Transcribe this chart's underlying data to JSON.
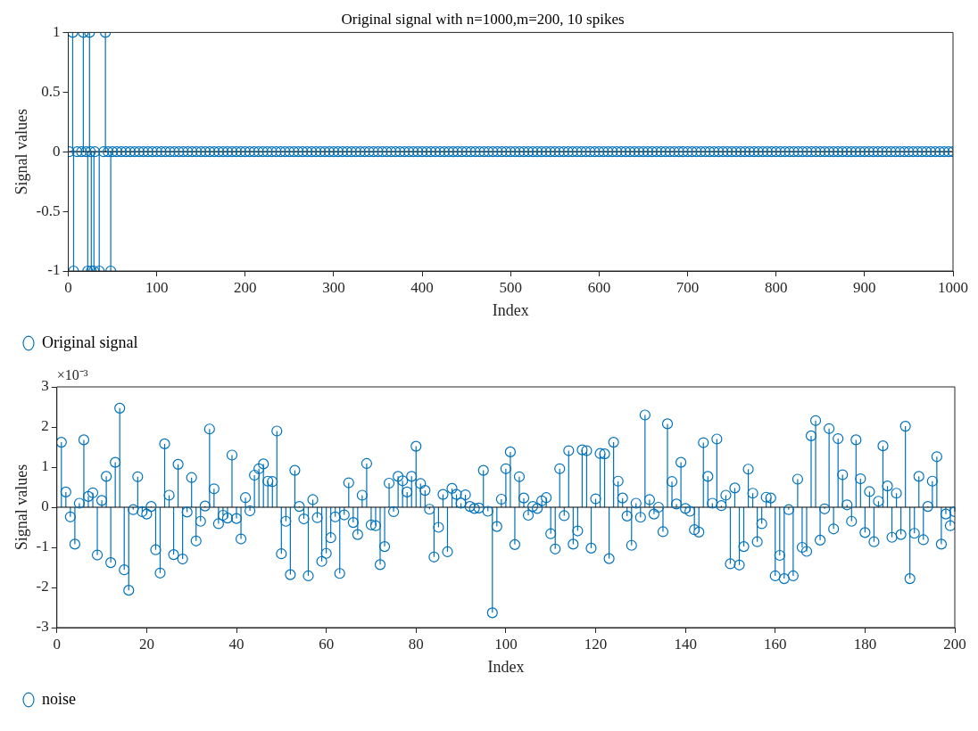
{
  "chart_data": [
    {
      "type": "lollipop",
      "title": "Original signal with n=1000,m=200, 10 spikes",
      "xlabel": "Index",
      "ylabel": "Signal values",
      "xlim": [
        0,
        1000
      ],
      "xticks": [
        0,
        100,
        200,
        300,
        400,
        500,
        600,
        700,
        800,
        900,
        1000
      ],
      "ylim": [
        -1,
        1
      ],
      "yticks": [
        -1,
        -0.5,
        0,
        0.5,
        1
      ],
      "legend": "bottom left",
      "marker": "circle",
      "series": [
        {
          "name": "Original signal",
          "color": "#0072bd",
          "x": [
            1,
            5,
            6,
            10,
            15,
            17,
            20,
            22,
            24,
            25,
            26,
            29,
            30,
            35,
            40,
            42,
            45,
            48,
            50,
            55,
            60,
            65,
            70,
            75,
            80,
            85,
            90,
            95,
            100,
            105,
            110,
            115,
            120,
            125,
            130,
            135,
            140,
            145,
            150,
            155,
            160,
            165,
            170,
            175,
            180,
            185,
            190,
            195,
            200,
            205,
            210,
            215,
            220,
            225,
            230,
            235,
            240,
            245,
            250,
            255,
            260,
            265,
            270,
            275,
            280,
            285,
            290,
            295,
            300,
            305,
            310,
            315,
            320,
            325,
            330,
            335,
            340,
            345,
            350,
            355,
            360,
            365,
            370,
            375,
            380,
            385,
            390,
            395,
            400,
            405,
            410,
            415,
            420,
            425,
            430,
            435,
            440,
            445,
            450,
            455,
            460,
            465,
            470,
            475,
            480,
            485,
            490,
            495,
            500,
            505,
            510,
            515,
            520,
            525,
            530,
            535,
            540,
            545,
            550,
            555,
            560,
            565,
            570,
            575,
            580,
            585,
            590,
            595,
            600,
            605,
            610,
            615,
            620,
            625,
            630,
            635,
            640,
            645,
            650,
            655,
            660,
            665,
            670,
            675,
            680,
            685,
            690,
            695,
            700,
            705,
            710,
            715,
            720,
            725,
            730,
            735,
            740,
            745,
            750,
            755,
            760,
            765,
            770,
            775,
            780,
            785,
            790,
            795,
            800,
            805,
            810,
            815,
            820,
            825,
            830,
            835,
            840,
            845,
            850,
            855,
            860,
            865,
            870,
            875,
            880,
            885,
            890,
            895,
            900,
            905,
            910,
            915,
            920,
            925,
            930,
            935,
            940,
            945,
            950,
            955,
            960,
            965,
            970,
            975,
            980,
            985,
            990,
            995,
            1000
          ],
          "values": [
            0,
            1,
            -1,
            0,
            0,
            1,
            0,
            -1,
            1,
            0,
            -1,
            -1,
            0,
            -1,
            0,
            1,
            0,
            -1,
            0,
            0,
            0,
            0,
            0,
            0,
            0,
            0,
            0,
            0,
            0,
            0,
            0,
            0,
            0,
            0,
            0,
            0,
            0,
            0,
            0,
            0,
            0,
            0,
            0,
            0,
            0,
            0,
            0,
            0,
            0,
            0,
            0,
            0,
            0,
            0,
            0,
            0,
            0,
            0,
            0,
            0,
            0,
            0,
            0,
            0,
            0,
            0,
            0,
            0,
            0,
            0,
            0,
            0,
            0,
            0,
            0,
            0,
            0,
            0,
            0,
            0,
            0,
            0,
            0,
            0,
            0,
            0,
            0,
            0,
            0,
            0,
            0,
            0,
            0,
            0,
            0,
            0,
            0,
            0,
            0,
            0,
            0,
            0,
            0,
            0,
            0,
            0,
            0,
            0,
            0,
            0,
            0,
            0,
            0,
            0,
            0,
            0,
            0,
            0,
            0,
            0,
            0,
            0,
            0,
            0,
            0,
            0,
            0,
            0,
            0,
            0,
            0,
            0,
            0,
            0,
            0,
            0,
            0,
            0,
            0,
            0,
            0,
            0,
            0,
            0,
            0,
            0,
            0,
            0,
            0,
            0,
            0,
            0,
            0,
            0,
            0,
            0,
            0,
            0,
            0,
            0,
            0,
            0,
            0,
            0,
            0,
            0,
            0,
            0,
            0,
            0,
            0,
            0,
            0,
            0,
            0,
            0,
            0,
            0,
            0,
            0,
            0,
            0,
            0,
            0,
            0,
            0,
            0,
            0,
            0,
            0,
            0,
            0,
            0,
            0,
            0,
            0,
            0,
            0,
            0,
            0,
            0,
            0,
            0,
            0,
            0,
            0,
            0,
            0,
            0
          ]
        }
      ]
    },
    {
      "type": "lollipop",
      "xlabel": "Index",
      "ylabel": "Signal values",
      "annotations": [
        "×10⁻³"
      ],
      "xlim": [
        0,
        200
      ],
      "xticks": [
        0,
        20,
        40,
        60,
        80,
        100,
        120,
        140,
        160,
        180,
        200
      ],
      "ylim": [
        -3,
        3
      ],
      "yticks": [
        -3,
        -2,
        -1,
        0,
        1,
        2,
        3
      ],
      "legend": "bottom left",
      "marker": "circle",
      "series": [
        {
          "name": "noise",
          "color": "#0072bd",
          "x": [
            1,
            2,
            3,
            4,
            5,
            6,
            7,
            8,
            9,
            10,
            11,
            12,
            13,
            14,
            15,
            16,
            17,
            18,
            19,
            20,
            21,
            22,
            23,
            24,
            25,
            26,
            27,
            28,
            29,
            30,
            31,
            32,
            33,
            34,
            35,
            36,
            37,
            38,
            39,
            40,
            41,
            42,
            43,
            44,
            45,
            46,
            47,
            48,
            49,
            50,
            51,
            52,
            53,
            54,
            55,
            56,
            57,
            58,
            59,
            60,
            61,
            62,
            63,
            64,
            65,
            66,
            67,
            68,
            69,
            70,
            71,
            72,
            73,
            74,
            75,
            76,
            77,
            78,
            79,
            80,
            81,
            82,
            83,
            84,
            85,
            86,
            87,
            88,
            89,
            90,
            91,
            92,
            93,
            94,
            95,
            96,
            97,
            98,
            99,
            100,
            101,
            102,
            103,
            104,
            105,
            106,
            107,
            108,
            109,
            110,
            111,
            112,
            113,
            114,
            115,
            116,
            117,
            118,
            119,
            120,
            121,
            122,
            123,
            124,
            125,
            126,
            127,
            128,
            129,
            130,
            131,
            132,
            133,
            134,
            135,
            136,
            137,
            138,
            139,
            140,
            141,
            142,
            143,
            144,
            145,
            146,
            147,
            148,
            149,
            150,
            151,
            152,
            153,
            154,
            155,
            156,
            157,
            158,
            159,
            160,
            161,
            162,
            163,
            164,
            165,
            166,
            167,
            168,
            169,
            170,
            171,
            172,
            173,
            174,
            175,
            176,
            177,
            178,
            179,
            180,
            181,
            182,
            183,
            184,
            185,
            186,
            187,
            188,
            189,
            190,
            191,
            192,
            193,
            194,
            195,
            196,
            197,
            198,
            199,
            200
          ],
          "values": [
            1.62,
            0.38,
            -0.24,
            -0.92,
            0.1,
            1.68,
            0.27,
            0.36,
            -1.19,
            0.17,
            0.77,
            -1.38,
            1.12,
            2.47,
            -1.56,
            -2.07,
            -0.06,
            0.76,
            -0.11,
            -0.17,
            0.02,
            -1.06,
            -1.64,
            1.58,
            0.3,
            -1.18,
            1.07,
            -1.29,
            -0.12,
            0.74,
            -0.84,
            -0.35,
            0.03,
            1.95,
            0.46,
            -0.41,
            -0.2,
            -0.27,
            1.3,
            -0.28,
            -0.79,
            0.24,
            -0.09,
            0.8,
            0.96,
            1.08,
            0.65,
            0.64,
            1.9,
            -1.16,
            -0.35,
            -1.68,
            0.92,
            0.02,
            -0.29,
            -1.71,
            0.19,
            -0.26,
            -1.35,
            -1.15,
            -0.76,
            -0.24,
            -1.65,
            -0.19,
            0.61,
            -0.38,
            -0.68,
            0.3,
            1.09,
            -0.44,
            -0.46,
            -1.43,
            -0.98,
            0.6,
            -0.11,
            0.77,
            0.66,
            0.38,
            0.77,
            1.52,
            0.59,
            0.42,
            -0.05,
            -1.24,
            -0.5,
            0.32,
            -1.11,
            0.47,
            0.32,
            0.1,
            0.31,
            0.02,
            -0.03,
            -0.02,
            0.92,
            -0.1,
            -2.63,
            -0.48,
            0.2,
            0.96,
            1.38,
            -0.93,
            0.76,
            0.23,
            -0.2,
            0.02,
            -0.03,
            0.16,
            0.24,
            -0.66,
            -1.04,
            0.96,
            -0.21,
            1.41,
            -0.92,
            -0.59,
            1.43,
            1.41,
            -1.02,
            0.21,
            1.34,
            1.33,
            -1.28,
            1.62,
            0.65,
            0.23,
            -0.22,
            -0.95,
            0.1,
            -0.25,
            2.3,
            0.19,
            -0.17,
            0,
            -0.61,
            2.08,
            0.64,
            0.08,
            1.12,
            -0.03,
            -0.1,
            -0.56,
            -0.62,
            1.61,
            0.77,
            0.1,
            1.7,
            0.04,
            0.3,
            -1.41,
            0.48,
            -1.44,
            -0.98,
            0.95,
            0.35,
            -0.86,
            -0.41,
            0.25,
            0.23,
            -1.71,
            -1.2,
            -1.78,
            -0.06,
            -1.71,
            0.7,
            -1,
            -1.1,
            1.78,
            2.16,
            -0.82,
            -0.04,
            1.96,
            -0.54,
            1.71,
            0.81,
            0.06,
            -0.35,
            1.68,
            0.71,
            -0.63,
            0.39,
            -0.86,
            0.15,
            1.53,
            0.53,
            -0.75,
            0.35,
            -0.68,
            2.02,
            -1.78,
            -0.65,
            0.77,
            -0.81,
            0.02,
            0.65,
            1.26,
            -0.92,
            -0.17,
            -0.46,
            -0.11
          ]
        }
      ]
    }
  ]
}
